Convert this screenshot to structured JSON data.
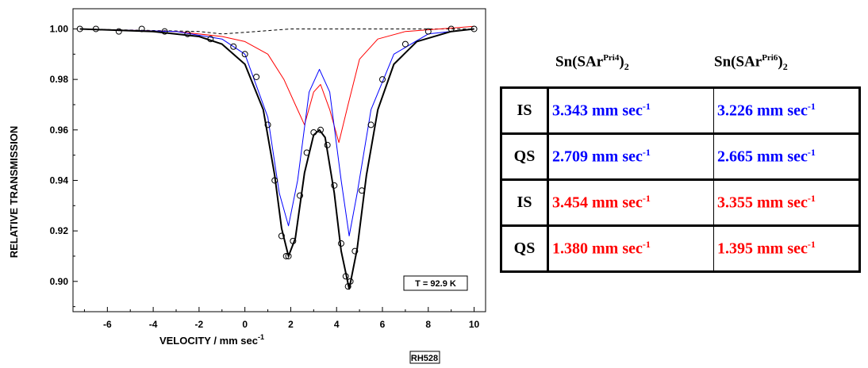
{
  "chart_data": {
    "type": "line",
    "xlabel": "VELOCITY / mm sec",
    "xlabel_sup": "-1",
    "ylabel": "RELATIVE TRANSMISSION",
    "xlim": [
      -7.5,
      10.5
    ],
    "ylim": [
      0.888,
      1.008
    ],
    "x_ticks": [
      -6,
      -4,
      -2,
      0,
      2,
      4,
      6,
      8,
      10
    ],
    "x_tick_labels": [
      "-6",
      "-4",
      "-2",
      "0",
      "2",
      "4",
      "6",
      "8",
      "10"
    ],
    "y_ticks": [
      0.9,
      0.92,
      0.94,
      0.96,
      0.98,
      1.0
    ],
    "y_tick_labels": [
      "0.90",
      "0.92",
      "0.94",
      "0.96",
      "0.98",
      "1.00"
    ],
    "grid": false,
    "annotation": "T = 92.9 K",
    "sample_label": "RH528",
    "colors": {
      "fit": "#000000",
      "site1": "#0000ff",
      "site2": "#ff0000",
      "baseline": "#000000",
      "data": "#000000"
    },
    "series": [
      {
        "role": "data",
        "style": "open-circles",
        "x": [
          -7.2,
          -6.5,
          -5.5,
          -4.5,
          -3.5,
          -2.5,
          -1.5,
          -0.5,
          0.0,
          0.5,
          1.0,
          1.3,
          1.6,
          1.8,
          1.9,
          2.1,
          2.4,
          2.7,
          3.0,
          3.3,
          3.6,
          3.9,
          4.2,
          4.4,
          4.5,
          4.6,
          4.8,
          5.1,
          5.5,
          6.0,
          7.0,
          8.0,
          9.0,
          10.0
        ],
        "y": [
          1.0,
          1.0,
          0.999,
          1.0,
          0.999,
          0.998,
          0.996,
          0.993,
          0.99,
          0.981,
          0.962,
          0.94,
          0.918,
          0.91,
          0.91,
          0.916,
          0.934,
          0.951,
          0.959,
          0.96,
          0.954,
          0.938,
          0.915,
          0.902,
          0.898,
          0.9,
          0.912,
          0.936,
          0.962,
          0.98,
          0.994,
          0.999,
          1.0,
          1.0
        ]
      },
      {
        "role": "fit",
        "x": [
          -7.2,
          -4.0,
          -2.0,
          -1.0,
          0.0,
          0.8,
          1.3,
          1.6,
          1.9,
          2.2,
          2.6,
          3.0,
          3.25,
          3.5,
          3.9,
          4.2,
          4.55,
          4.9,
          5.3,
          5.8,
          6.5,
          7.5,
          9.0,
          10.0
        ],
        "y": [
          1.0,
          0.999,
          0.997,
          0.994,
          0.986,
          0.968,
          0.942,
          0.921,
          0.91,
          0.917,
          0.943,
          0.958,
          0.96,
          0.957,
          0.935,
          0.912,
          0.897,
          0.913,
          0.942,
          0.968,
          0.986,
          0.995,
          0.999,
          1.0
        ]
      },
      {
        "role": "site1",
        "x": [
          -7.2,
          -3.0,
          -1.0,
          0.0,
          1.0,
          1.5,
          1.9,
          2.3,
          2.8,
          3.25,
          3.7,
          4.2,
          4.55,
          4.9,
          5.5,
          6.5,
          8.0,
          10.0
        ],
        "y": [
          1.0,
          0.999,
          0.996,
          0.99,
          0.965,
          0.935,
          0.922,
          0.94,
          0.975,
          0.984,
          0.975,
          0.94,
          0.918,
          0.935,
          0.968,
          0.99,
          0.998,
          1.0
        ]
      },
      {
        "role": "site2",
        "x": [
          -7.2,
          -3.0,
          -1.0,
          0.0,
          1.0,
          1.7,
          2.2,
          2.6,
          3.0,
          3.3,
          3.7,
          4.1,
          4.5,
          5.0,
          5.8,
          7.0,
          8.5,
          10.0
        ],
        "y": [
          1.0,
          0.999,
          0.997,
          0.995,
          0.99,
          0.98,
          0.97,
          0.962,
          0.975,
          0.978,
          0.968,
          0.955,
          0.97,
          0.988,
          0.996,
          0.999,
          1.0,
          1.001
        ]
      },
      {
        "role": "baseline",
        "style": "dashed",
        "x": [
          -7.2,
          -2.0,
          -1.0,
          0.5,
          2.0,
          4.0,
          6.0,
          8.0,
          10.0
        ],
        "y": [
          1.0,
          0.999,
          0.998,
          0.999,
          1.0,
          1.0,
          1.0,
          1.0,
          1.0
        ]
      }
    ]
  },
  "table": {
    "headers": [
      {
        "base": "Sn(SAr",
        "sup": "Pri4",
        "close": ")",
        "sub": "2"
      },
      {
        "base": "Sn(SAr",
        "sup": "Pri6",
        "close": ")",
        "sub": "2"
      }
    ],
    "unit": "mm sec",
    "unit_sup": "-1",
    "rows": [
      {
        "label": "IS",
        "v1": "3.343",
        "v2": "3.226",
        "color": "#0000ff"
      },
      {
        "label": "QS",
        "v1": "2.709",
        "v2": "2.665",
        "color": "#0000ff"
      },
      {
        "label": "IS",
        "v1": "3.454",
        "v2": "3.355",
        "color": "#ff0000"
      },
      {
        "label": "QS",
        "v1": "1.380",
        "v2": "1.395",
        "color": "#ff0000"
      }
    ]
  }
}
